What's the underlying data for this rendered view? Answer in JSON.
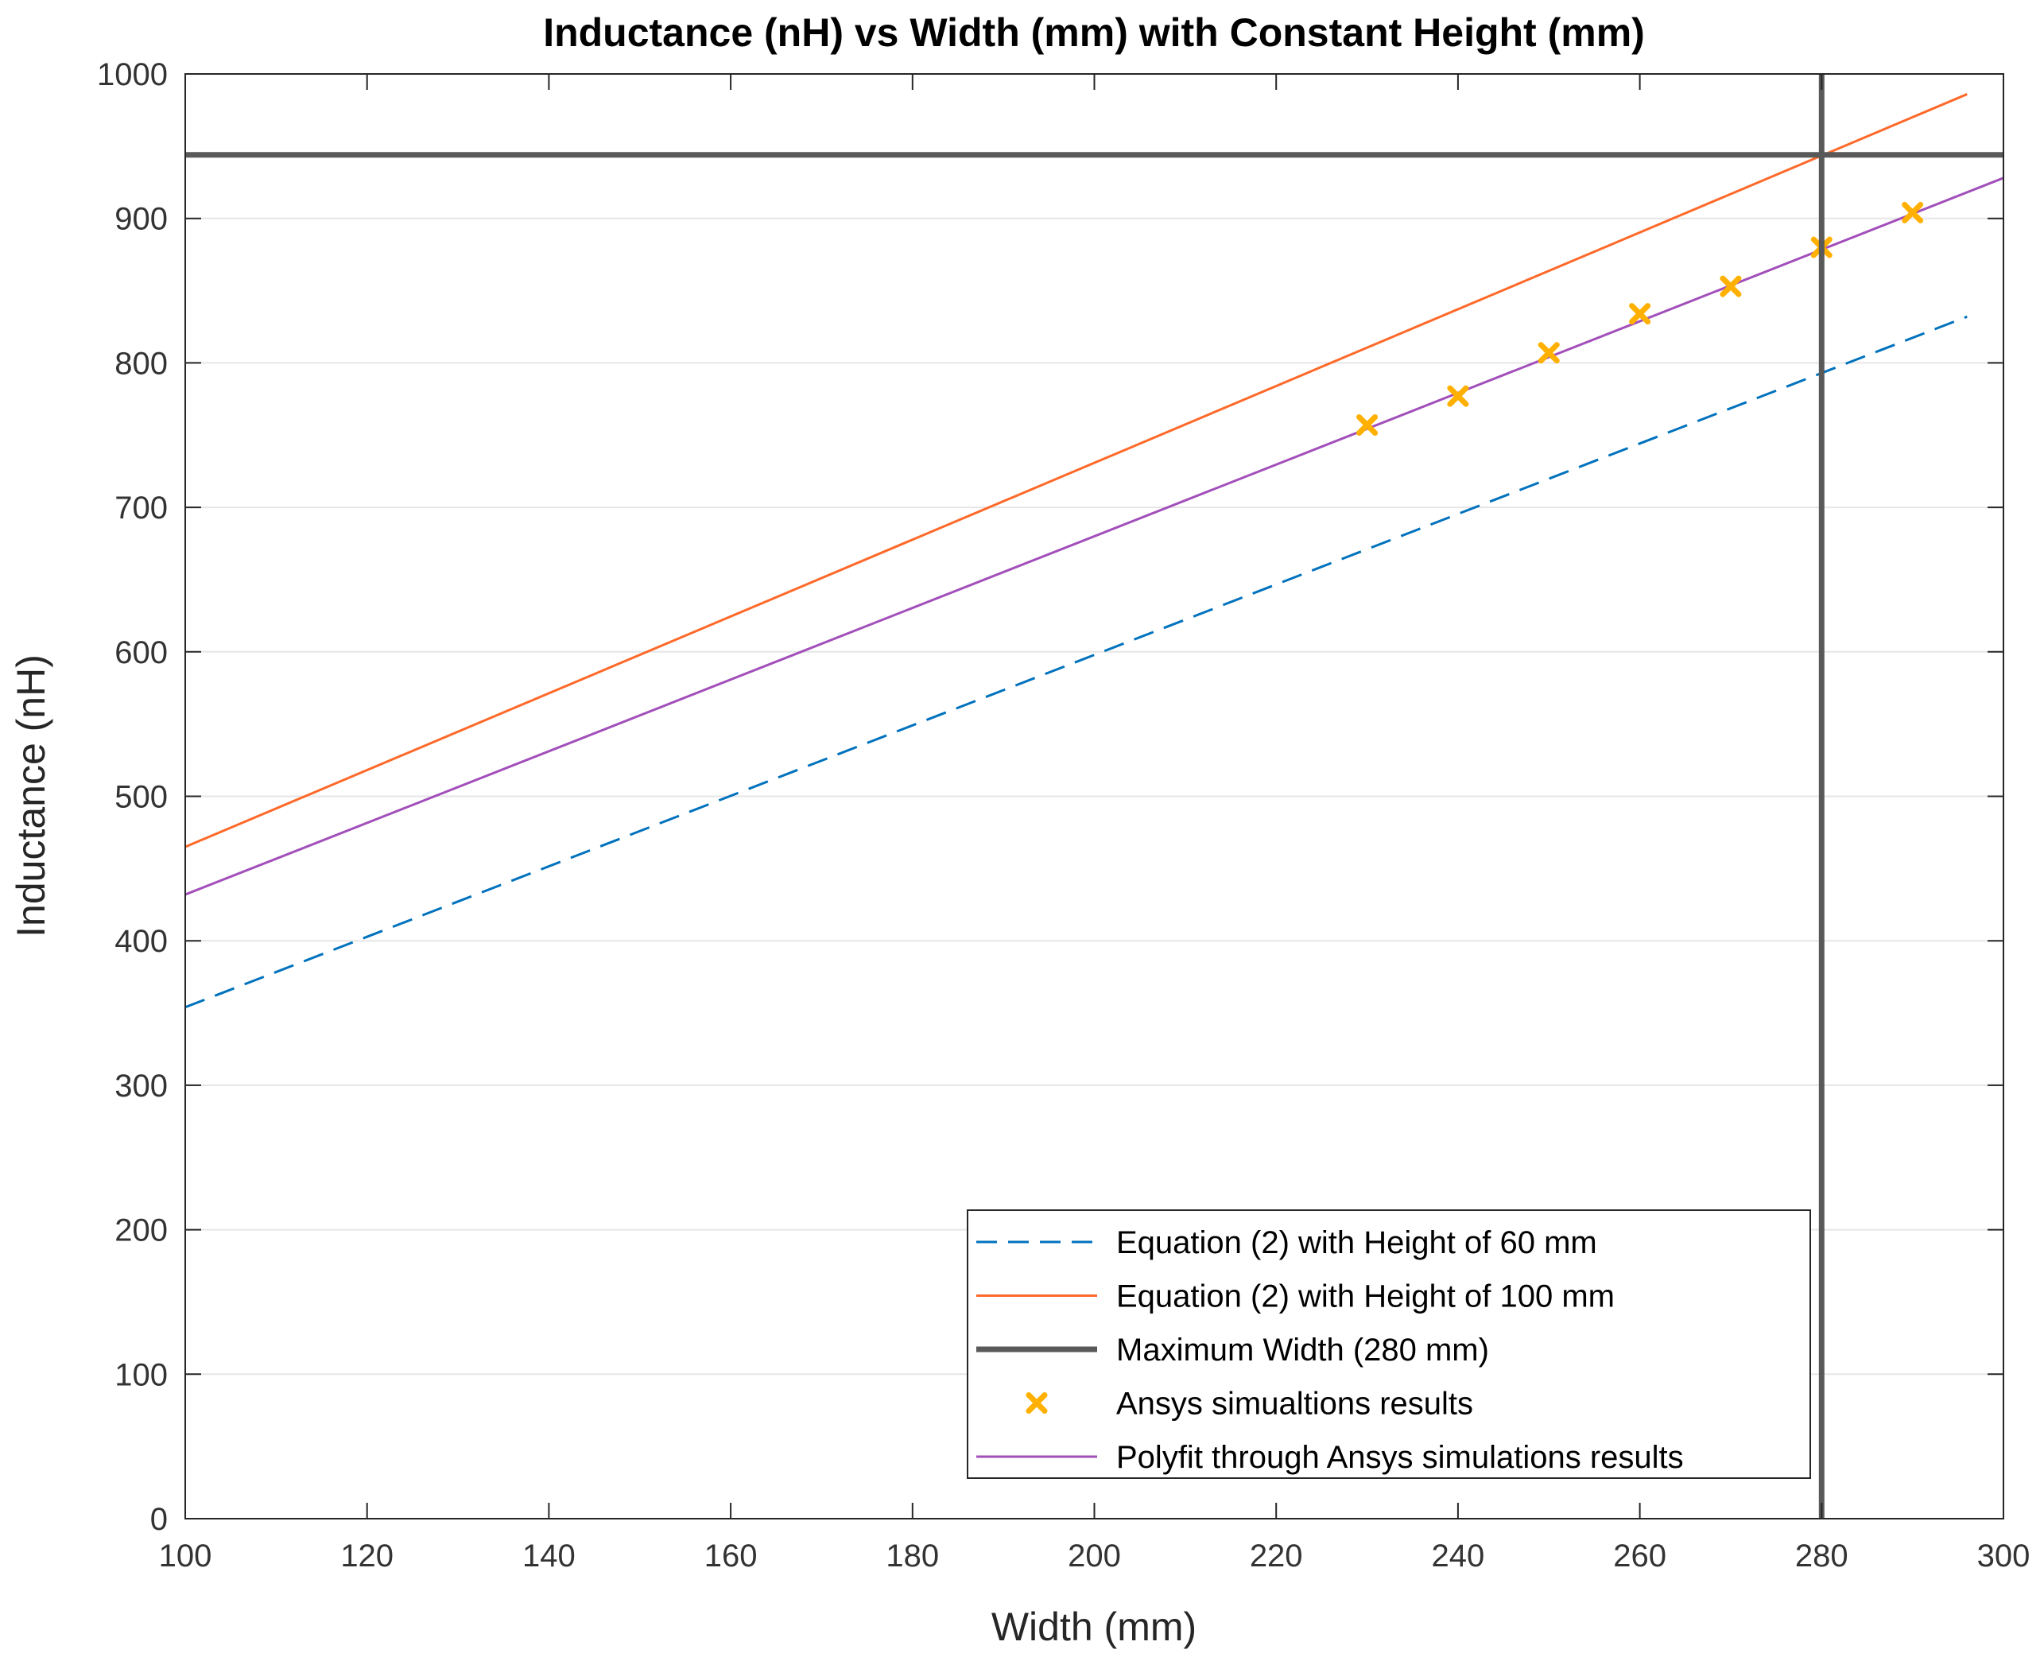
{
  "chart_data": {
    "type": "line",
    "title": "Inductance (nH) vs Width (mm) with Constant Height (mm)",
    "xlabel": "Width (mm)",
    "ylabel": "Inductance (nH)",
    "xlim": [
      100,
      300
    ],
    "ylim": [
      0,
      1000
    ],
    "xticks": [
      "100",
      "120",
      "140",
      "160",
      "180",
      "200",
      "220",
      "240",
      "260",
      "280",
      "300"
    ],
    "yticks": [
      "0",
      "100",
      "200",
      "300",
      "400",
      "500",
      "600",
      "700",
      "800",
      "900",
      "1000"
    ],
    "grid": true,
    "legend_position": "bottom-right",
    "series": [
      {
        "name": "Equation (2) with Height of 60 mm",
        "kind": "line",
        "style": "dashed",
        "color": "#0072BD",
        "x": [
          100,
          296
        ],
        "y": [
          354,
          832
        ]
      },
      {
        "name": "Equation (2) with Height of 100 mm",
        "kind": "line",
        "style": "solid",
        "color": "#FF6929",
        "x": [
          100,
          296
        ],
        "y": [
          465,
          986
        ]
      },
      {
        "name": "Maximum Width (280 mm)",
        "kind": "crosshair",
        "style": "solid-thick",
        "color": "#595959",
        "x_value": 280,
        "y_value": 944
      },
      {
        "name": "Ansys simualtions results",
        "kind": "scatter",
        "color": "#FFB000",
        "x": [
          230,
          240,
          250,
          260,
          270,
          280,
          290
        ],
        "y": [
          757,
          777,
          807,
          834,
          853,
          880,
          904
        ]
      },
      {
        "name": "Polyfit through Ansys simulations results",
        "kind": "line",
        "style": "solid",
        "color": "#A24FBA",
        "x": [
          100,
          300
        ],
        "y": [
          432,
          928
        ]
      }
    ]
  }
}
